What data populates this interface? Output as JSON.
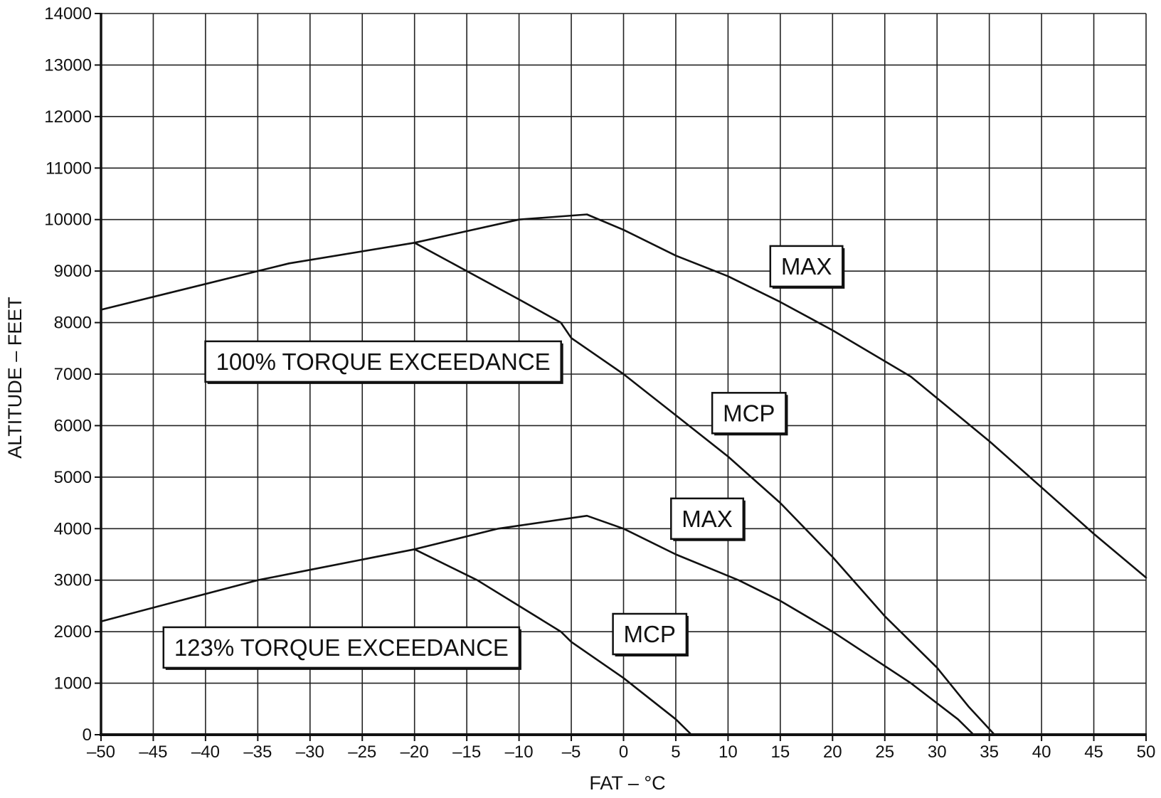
{
  "chart_data": {
    "type": "line",
    "xlabel": "FAT – °C",
    "ylabel": "ALTITUDE – FEET",
    "xlim": [
      -50,
      50
    ],
    "ylim": [
      0,
      14000
    ],
    "grid": true,
    "x_ticks": [
      -50,
      -45,
      -40,
      -35,
      -30,
      -25,
      -20,
      -15,
      -10,
      -5,
      0,
      5,
      10,
      15,
      20,
      25,
      30,
      35,
      40,
      45,
      50
    ],
    "x_tick_labels": [
      "–50",
      "–45",
      "–40",
      "–35",
      "–30",
      "–25",
      "–20",
      "–15",
      "–10",
      "–5",
      "0",
      "5",
      "10",
      "15",
      "20",
      "25",
      "30",
      "35",
      "40",
      "45",
      "50"
    ],
    "y_ticks": [
      0,
      1000,
      2000,
      3000,
      4000,
      5000,
      6000,
      7000,
      8000,
      9000,
      10000,
      11000,
      12000,
      13000,
      14000
    ],
    "y_tick_labels": [
      "0",
      "1000",
      "2000",
      "3000",
      "4000",
      "5000",
      "6000",
      "7000",
      "8000",
      "9000",
      "10000",
      "11000",
      "12000",
      "13000",
      "14000"
    ],
    "colors": {
      "line": "#111111",
      "grid": "#222222",
      "background": "#ffffff"
    },
    "series": [
      {
        "key": "upper-max",
        "points": [
          [
            -50,
            8250
          ],
          [
            -35,
            9000
          ],
          [
            -32,
            9150
          ],
          [
            -20,
            9550
          ],
          [
            -10,
            10000
          ],
          [
            -3.5,
            10100
          ],
          [
            0,
            9800
          ],
          [
            5,
            9300
          ],
          [
            10,
            8900
          ],
          [
            15,
            8400
          ],
          [
            20,
            7850
          ],
          [
            27.5,
            6950
          ],
          [
            35,
            5700
          ],
          [
            40,
            4800
          ],
          [
            45,
            3900
          ],
          [
            50,
            3050
          ]
        ]
      },
      {
        "key": "upper-mcp",
        "points": [
          [
            -20,
            9550
          ],
          [
            -15,
            9000
          ],
          [
            -10,
            8450
          ],
          [
            -6,
            8000
          ],
          [
            -5,
            7700
          ],
          [
            0,
            7000
          ],
          [
            5,
            6200
          ],
          [
            10,
            5400
          ],
          [
            15,
            4500
          ],
          [
            20,
            3450
          ],
          [
            25,
            2300
          ],
          [
            30,
            1300
          ],
          [
            33,
            550
          ],
          [
            35.5,
            0
          ]
        ]
      },
      {
        "key": "lower-max",
        "points": [
          [
            -50,
            2200
          ],
          [
            -35,
            3000
          ],
          [
            -30,
            3200
          ],
          [
            -20,
            3600
          ],
          [
            -12,
            4000
          ],
          [
            -3.5,
            4250
          ],
          [
            0,
            4000
          ],
          [
            5,
            3500
          ],
          [
            11,
            3000
          ],
          [
            15,
            2600
          ],
          [
            20,
            2000
          ],
          [
            27.5,
            1000
          ],
          [
            32,
            300
          ],
          [
            33.5,
            0
          ]
        ]
      },
      {
        "key": "lower-mcp",
        "points": [
          [
            -20,
            3600
          ],
          [
            -14,
            3000
          ],
          [
            -10,
            2500
          ],
          [
            -6,
            2000
          ],
          [
            -5,
            1800
          ],
          [
            0,
            1100
          ],
          [
            5,
            300
          ],
          [
            6.5,
            0
          ]
        ]
      }
    ],
    "annotations": [
      {
        "key": "max-upper",
        "text": "MAX",
        "x": 17.5,
        "y": 9100
      },
      {
        "key": "mcp-upper",
        "text": "MCP",
        "x": 12,
        "y": 6250
      },
      {
        "key": "torque-100",
        "text": "100% TORQUE EXCEEDANCE",
        "x": -23,
        "y": 7250
      },
      {
        "key": "max-lower",
        "text": "MAX",
        "x": 8,
        "y": 4200
      },
      {
        "key": "mcp-lower",
        "text": "MCP",
        "x": 2.5,
        "y": 1960
      },
      {
        "key": "torque-123",
        "text": "123% TORQUE EXCEEDANCE",
        "x": -27,
        "y": 1700
      }
    ]
  }
}
